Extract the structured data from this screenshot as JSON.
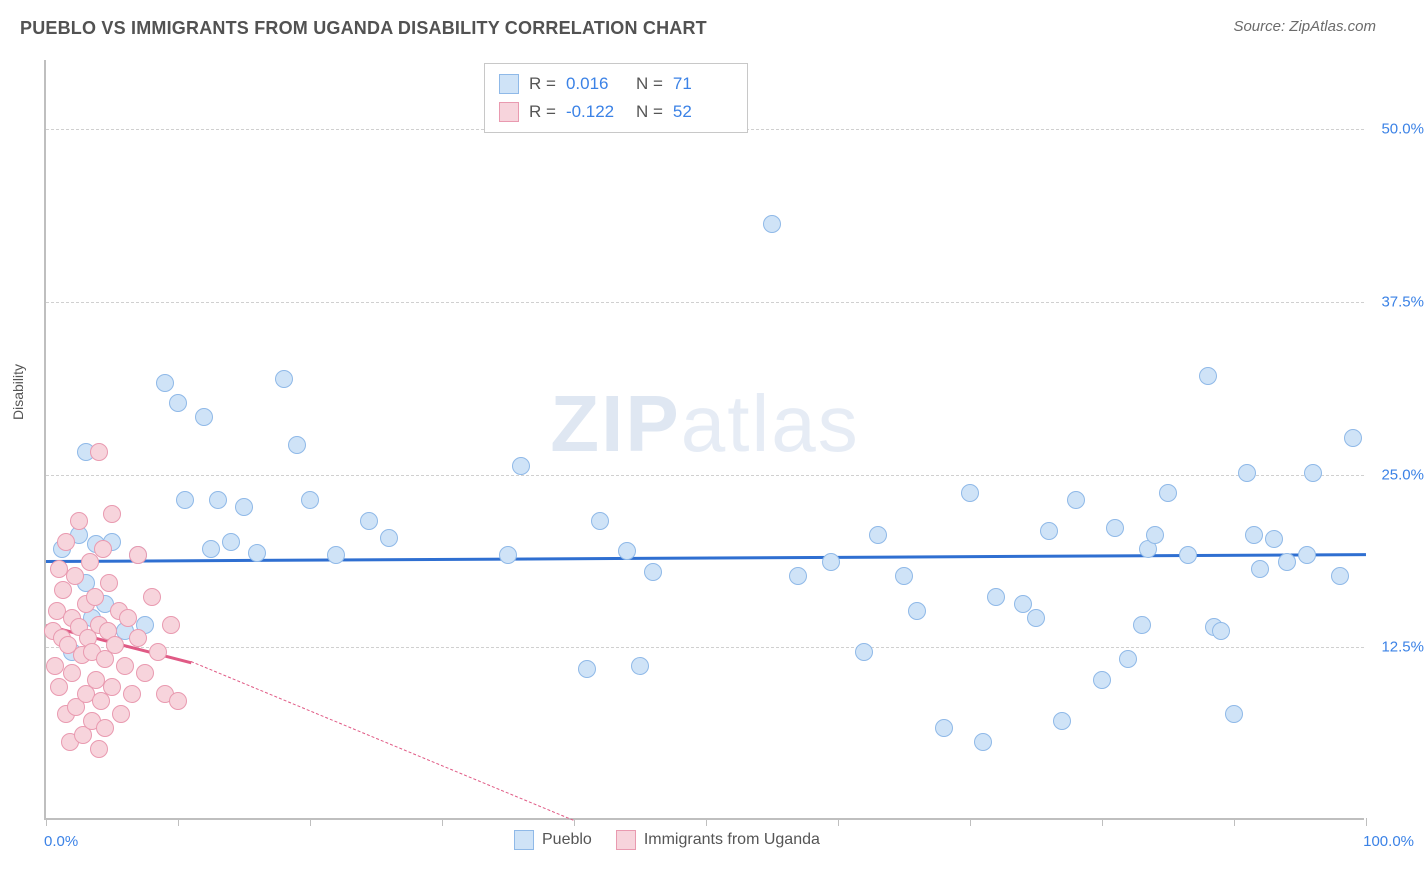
{
  "header": {
    "title": "PUEBLO VS IMMIGRANTS FROM UGANDA DISABILITY CORRELATION CHART",
    "source": "Source: ZipAtlas.com"
  },
  "watermark": {
    "bold": "ZIP",
    "light": "atlas"
  },
  "chart": {
    "type": "scatter",
    "ylabel": "Disability",
    "background_color": "#ffffff",
    "grid_color": "#d0d0d0",
    "axis_color": "#bfbfbf",
    "tick_label_color": "#3b82e6",
    "xlim": [
      0,
      100
    ],
    "ylim": [
      0,
      55
    ],
    "xticks": [
      0,
      10,
      20,
      30,
      40,
      50,
      60,
      70,
      80,
      90,
      100
    ],
    "yticks": [
      {
        "v": 12.5,
        "label": "12.5%"
      },
      {
        "v": 25.0,
        "label": "25.0%"
      },
      {
        "v": 37.5,
        "label": "37.5%"
      },
      {
        "v": 50.0,
        "label": "50.0%"
      }
    ],
    "x_axis_labels": {
      "left": "0.0%",
      "right": "100.0%"
    },
    "series": [
      {
        "name": "Pueblo",
        "fill": "#cfe3f7",
        "stroke": "#8fb9e8",
        "trend_color": "#2f6fd1",
        "trend": {
          "x1": 0,
          "y1": 18.8,
          "x2": 100,
          "y2": 19.3
        },
        "R": "0.016",
        "N": "71",
        "points": [
          [
            1.2,
            19.5
          ],
          [
            2.0,
            12.0
          ],
          [
            2.5,
            20.5
          ],
          [
            3.0,
            26.5
          ],
          [
            3.0,
            17.0
          ],
          [
            3.5,
            14.5
          ],
          [
            3.8,
            19.8
          ],
          [
            4.5,
            15.5
          ],
          [
            5.0,
            20.0
          ],
          [
            6.0,
            13.5
          ],
          [
            7.0,
            19.0
          ],
          [
            7.5,
            14.0
          ],
          [
            9.0,
            31.5
          ],
          [
            10.0,
            30.0
          ],
          [
            10.5,
            23.0
          ],
          [
            12.0,
            29.0
          ],
          [
            12.5,
            19.5
          ],
          [
            13.0,
            23.0
          ],
          [
            14.0,
            20.0
          ],
          [
            15.0,
            22.5
          ],
          [
            16.0,
            19.2
          ],
          [
            18.0,
            31.8
          ],
          [
            19.0,
            27.0
          ],
          [
            20.0,
            23.0
          ],
          [
            22.0,
            19.0
          ],
          [
            24.5,
            21.5
          ],
          [
            26.0,
            20.3
          ],
          [
            35.0,
            19.0
          ],
          [
            36.0,
            25.5
          ],
          [
            41.0,
            10.8
          ],
          [
            42.0,
            21.5
          ],
          [
            44.0,
            19.3
          ],
          [
            45.0,
            11.0
          ],
          [
            46.0,
            17.8
          ],
          [
            55.0,
            43.0
          ],
          [
            57.0,
            17.5
          ],
          [
            59.5,
            18.5
          ],
          [
            62.0,
            12.0
          ],
          [
            63.0,
            20.5
          ],
          [
            65.0,
            17.5
          ],
          [
            66.0,
            15.0
          ],
          [
            68.0,
            6.5
          ],
          [
            70.0,
            23.5
          ],
          [
            71.0,
            5.5
          ],
          [
            72.0,
            16.0
          ],
          [
            74.0,
            15.5
          ],
          [
            75.0,
            14.5
          ],
          [
            76.0,
            20.8
          ],
          [
            77.0,
            7.0
          ],
          [
            78.0,
            23.0
          ],
          [
            80.0,
            10.0
          ],
          [
            81.0,
            21.0
          ],
          [
            82.0,
            11.5
          ],
          [
            83.0,
            14.0
          ],
          [
            83.5,
            19.5
          ],
          [
            84.0,
            20.5
          ],
          [
            85.0,
            23.5
          ],
          [
            86.5,
            19.0
          ],
          [
            88.0,
            32.0
          ],
          [
            88.5,
            13.8
          ],
          [
            89.0,
            13.5
          ],
          [
            90.0,
            7.5
          ],
          [
            91.0,
            25.0
          ],
          [
            91.5,
            20.5
          ],
          [
            92.0,
            18.0
          ],
          [
            93.0,
            20.2
          ],
          [
            94.0,
            18.5
          ],
          [
            95.5,
            19.0
          ],
          [
            96.0,
            25.0
          ],
          [
            98.0,
            17.5
          ],
          [
            99.0,
            27.5
          ]
        ]
      },
      {
        "name": "Immigrants from Uganda",
        "fill": "#f7d4dc",
        "stroke": "#e99ab0",
        "trend_color": "#e05a85",
        "trend": {
          "x1": 0,
          "y1": 14.2,
          "x2": 11,
          "y2": 11.5
        },
        "trend_extend": {
          "x1": 11,
          "y1": 11.5,
          "x2": 40,
          "y2": 0
        },
        "R": "-0.122",
        "N": "52",
        "points": [
          [
            0.5,
            13.5
          ],
          [
            0.7,
            11.0
          ],
          [
            0.8,
            15.0
          ],
          [
            1.0,
            18.0
          ],
          [
            1.0,
            9.5
          ],
          [
            1.2,
            13.0
          ],
          [
            1.3,
            16.5
          ],
          [
            1.5,
            20.0
          ],
          [
            1.5,
            7.5
          ],
          [
            1.7,
            12.5
          ],
          [
            1.8,
            5.5
          ],
          [
            2.0,
            14.5
          ],
          [
            2.0,
            10.5
          ],
          [
            2.2,
            17.5
          ],
          [
            2.3,
            8.0
          ],
          [
            2.5,
            13.8
          ],
          [
            2.5,
            21.5
          ],
          [
            2.7,
            11.8
          ],
          [
            2.8,
            6.0
          ],
          [
            3.0,
            15.5
          ],
          [
            3.0,
            9.0
          ],
          [
            3.2,
            13.0
          ],
          [
            3.3,
            18.5
          ],
          [
            3.5,
            7.0
          ],
          [
            3.5,
            12.0
          ],
          [
            3.7,
            16.0
          ],
          [
            3.8,
            10.0
          ],
          [
            4.0,
            5.0
          ],
          [
            4.0,
            14.0
          ],
          [
            4.2,
            8.5
          ],
          [
            4.3,
            19.5
          ],
          [
            4.5,
            11.5
          ],
          [
            4.5,
            6.5
          ],
          [
            4.7,
            13.5
          ],
          [
            4.8,
            17.0
          ],
          [
            5.0,
            9.5
          ],
          [
            5.0,
            22.0
          ],
          [
            5.2,
            12.5
          ],
          [
            5.5,
            15.0
          ],
          [
            5.7,
            7.5
          ],
          [
            6.0,
            11.0
          ],
          [
            6.2,
            14.5
          ],
          [
            6.5,
            9.0
          ],
          [
            7.0,
            19.0
          ],
          [
            7.0,
            13.0
          ],
          [
            7.5,
            10.5
          ],
          [
            8.0,
            16.0
          ],
          [
            8.5,
            12.0
          ],
          [
            9.0,
            9.0
          ],
          [
            9.5,
            14.0
          ],
          [
            10.0,
            8.5
          ],
          [
            4.0,
            26.5
          ]
        ]
      }
    ],
    "legend": {
      "items": [
        {
          "label": "Pueblo",
          "fill": "#cfe3f7",
          "stroke": "#8fb9e8"
        },
        {
          "label": "Immigrants from Uganda",
          "fill": "#f7d4dc",
          "stroke": "#e99ab0"
        }
      ]
    }
  }
}
